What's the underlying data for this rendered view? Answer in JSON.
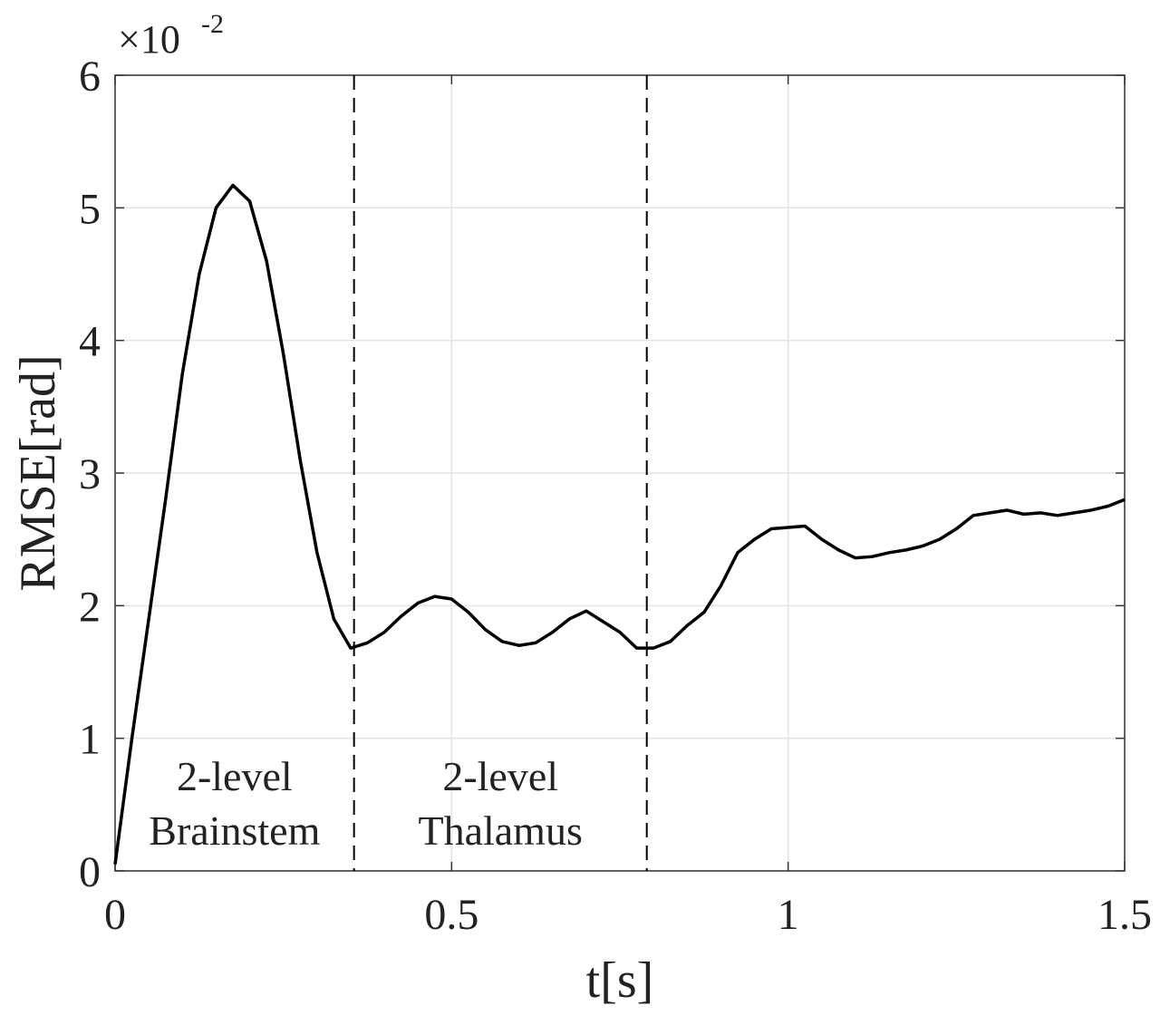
{
  "chart_data": {
    "type": "line",
    "xlabel": "t[s]",
    "ylabel": "RMSE[rad]",
    "y_multiplier": {
      "base": "×10",
      "exponent": "-2"
    },
    "x": [
      0,
      0.025,
      0.05,
      0.075,
      0.1,
      0.125,
      0.15,
      0.175,
      0.2,
      0.225,
      0.25,
      0.275,
      0.3,
      0.325,
      0.35,
      0.375,
      0.4,
      0.425,
      0.45,
      0.475,
      0.5,
      0.525,
      0.55,
      0.575,
      0.6,
      0.625,
      0.65,
      0.675,
      0.7,
      0.725,
      0.75,
      0.775,
      0.8,
      0.825,
      0.85,
      0.875,
      0.9,
      0.925,
      0.95,
      0.975,
      1.0,
      1.025,
      1.05,
      1.075,
      1.1,
      1.125,
      1.15,
      1.175,
      1.2,
      1.225,
      1.25,
      1.275,
      1.3,
      1.325,
      1.35,
      1.375,
      1.4,
      1.425,
      1.45,
      1.475,
      1.5
    ],
    "series": [
      {
        "color": "#000000",
        "values": [
          0.05,
          1.0,
          1.9,
          2.8,
          3.75,
          4.5,
          5.0,
          5.17,
          5.05,
          4.6,
          3.9,
          3.1,
          2.4,
          1.9,
          1.68,
          1.72,
          1.8,
          1.92,
          2.02,
          2.07,
          2.05,
          1.95,
          1.82,
          1.73,
          1.7,
          1.72,
          1.8,
          1.9,
          1.96,
          1.88,
          1.8,
          1.68,
          1.68,
          1.73,
          1.85,
          1.95,
          2.15,
          2.4,
          2.5,
          2.58,
          2.59,
          2.6,
          2.5,
          2.42,
          2.36,
          2.37,
          2.4,
          2.42,
          2.45,
          2.5,
          2.58,
          2.68,
          2.7,
          2.72,
          2.69,
          2.7,
          2.68,
          2.7,
          2.72,
          2.75,
          2.8
        ]
      }
    ],
    "vlines": [
      0.355,
      0.79
    ],
    "annotations": [
      [
        "2-level",
        "Brainstem"
      ],
      [
        "2-level",
        "Thalamus"
      ]
    ],
    "xlim": [
      0,
      1.5
    ],
    "ylim": [
      0,
      6
    ],
    "xticks": [
      0,
      0.5,
      1,
      1.5
    ],
    "yticks": [
      0,
      1,
      2,
      3,
      4,
      5,
      6
    ],
    "grid": true
  }
}
